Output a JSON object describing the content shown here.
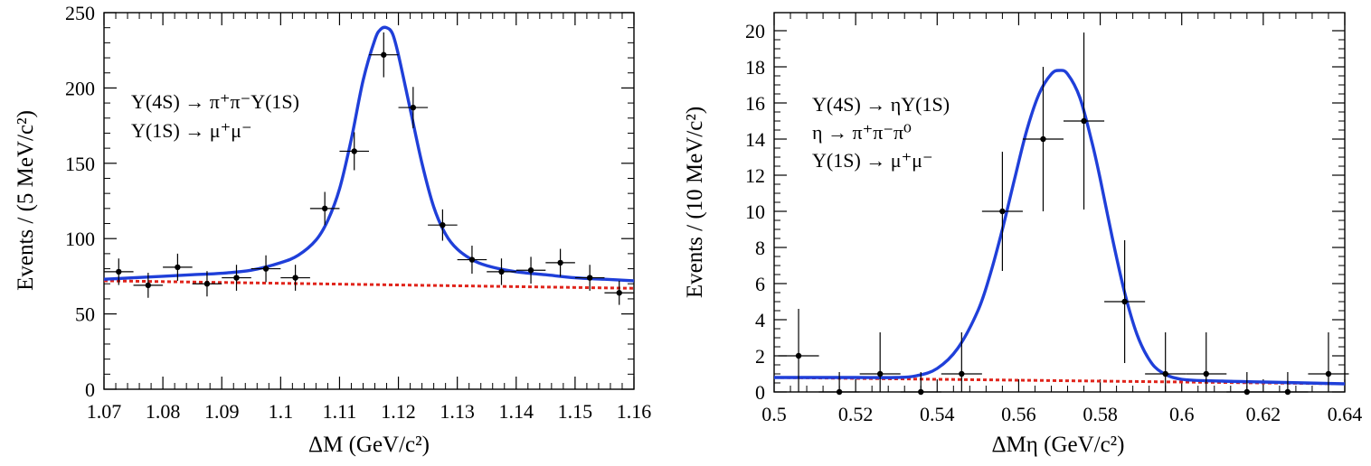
{
  "chart_data": [
    {
      "type": "scatter",
      "title": "",
      "xlabel": "ΔM (GeV/c²)",
      "ylabel": "Events / (5 MeV/c²)",
      "xlim": [
        1.07,
        1.16
      ],
      "ylim": [
        0,
        250
      ],
      "xticks": [
        1.07,
        1.08,
        1.09,
        1.1,
        1.11,
        1.12,
        1.13,
        1.14,
        1.15,
        1.16
      ],
      "xtick_labels": [
        "1.07",
        "1.08",
        "1.09",
        "1.1",
        "1.11",
        "1.12",
        "1.13",
        "1.14",
        "1.15",
        "1.16"
      ],
      "yticks": [
        0,
        50,
        100,
        150,
        200,
        250
      ],
      "ytick_labels": [
        "0",
        "50",
        "100",
        "150",
        "200",
        "250"
      ],
      "annotations": [
        "Υ(4S) → π⁺π⁻Υ(1S)",
        "Υ(1S) → μ⁺μ⁻"
      ],
      "points": {
        "x": [
          1.0725,
          1.0775,
          1.0825,
          1.0875,
          1.0925,
          1.0975,
          1.1025,
          1.1075,
          1.1125,
          1.1175,
          1.1225,
          1.1275,
          1.1325,
          1.1375,
          1.1425,
          1.1475,
          1.1525,
          1.1575
        ],
        "y": [
          78,
          69,
          81,
          70,
          74,
          80,
          74,
          120,
          158,
          222,
          187,
          109,
          86,
          78,
          79,
          84,
          74,
          64
        ],
        "err": [
          8.8,
          8.3,
          9.0,
          8.4,
          8.6,
          8.9,
          8.6,
          11.0,
          12.6,
          14.9,
          13.7,
          10.4,
          9.3,
          8.8,
          8.9,
          9.2,
          8.6,
          8.0
        ],
        "xerr": 0.0025
      },
      "fit": {
        "name": "total fit",
        "color": "#1f3fd9",
        "x": [
          1.07,
          1.075,
          1.08,
          1.085,
          1.09,
          1.095,
          1.1,
          1.103,
          1.106,
          1.108,
          1.11,
          1.112,
          1.114,
          1.116,
          1.117,
          1.118,
          1.119,
          1.12,
          1.122,
          1.124,
          1.126,
          1.128,
          1.13,
          1.133,
          1.136,
          1.14,
          1.145,
          1.15,
          1.155,
          1.16
        ],
        "y": [
          73,
          74,
          75,
          76,
          77,
          79,
          84,
          89,
          99,
          112,
          133,
          166,
          205,
          232,
          239,
          240,
          236,
          222,
          186,
          150,
          121,
          103,
          93,
          85,
          81,
          78,
          76,
          74,
          73,
          72
        ]
      },
      "background": {
        "name": "background",
        "color": "#e0241b",
        "x": [
          1.07,
          1.16
        ],
        "y": [
          72,
          67
        ]
      }
    },
    {
      "type": "scatter",
      "title": "",
      "xlabel": "ΔMη (GeV/c²)",
      "ylabel": "Events / (10 MeV/c²)",
      "xlim": [
        0.5,
        0.64
      ],
      "ylim": [
        0,
        21
      ],
      "xticks": [
        0.5,
        0.52,
        0.54,
        0.56,
        0.58,
        0.6,
        0.62,
        0.64
      ],
      "xtick_labels": [
        "0.5",
        "0.52",
        "0.54",
        "0.56",
        "0.58",
        "0.6",
        "0.62",
        "0.64"
      ],
      "yticks": [
        0,
        2,
        4,
        6,
        8,
        10,
        12,
        14,
        16,
        18,
        20
      ],
      "ytick_labels": [
        "0",
        "2",
        "4",
        "6",
        "8",
        "10",
        "12",
        "14",
        "16",
        "18",
        "20"
      ],
      "annotations": [
        "Υ(4S) → ηΥ(1S)",
        "η → π⁺π⁻π⁰",
        "Υ(1S) → μ⁺μ⁻"
      ],
      "points": {
        "x": [
          0.506,
          0.516,
          0.526,
          0.536,
          0.546,
          0.556,
          0.566,
          0.576,
          0.586,
          0.596,
          0.606,
          0.616,
          0.626,
          0.636
        ],
        "y": [
          2,
          0,
          1,
          0,
          1,
          10,
          14,
          15,
          5,
          1,
          1,
          0,
          0,
          1
        ],
        "err": [
          2.6,
          1.1,
          2.3,
          1.1,
          2.3,
          3.3,
          4.0,
          4.9,
          3.4,
          2.3,
          2.3,
          1.1,
          1.1,
          2.3
        ],
        "xerr": 0.005
      },
      "fit": {
        "name": "total fit",
        "color": "#1f3fd9",
        "x": [
          0.5,
          0.51,
          0.52,
          0.53,
          0.535,
          0.54,
          0.545,
          0.55,
          0.553,
          0.556,
          0.559,
          0.562,
          0.565,
          0.568,
          0.57,
          0.572,
          0.575,
          0.578,
          0.58,
          0.583,
          0.586,
          0.589,
          0.592,
          0.595,
          0.6,
          0.61,
          0.62,
          0.63,
          0.64
        ],
        "y": [
          0.8,
          0.8,
          0.8,
          0.8,
          0.9,
          1.3,
          2.4,
          4.5,
          6.5,
          9.0,
          11.8,
          14.5,
          16.5,
          17.6,
          17.8,
          17.6,
          16.3,
          13.8,
          11.8,
          8.5,
          5.5,
          3.2,
          1.8,
          1.1,
          0.7,
          0.6,
          0.55,
          0.5,
          0.45
        ]
      },
      "background": {
        "name": "background",
        "color": "#e0241b",
        "x": [
          0.5,
          0.64
        ],
        "y": [
          0.8,
          0.45
        ]
      }
    }
  ]
}
